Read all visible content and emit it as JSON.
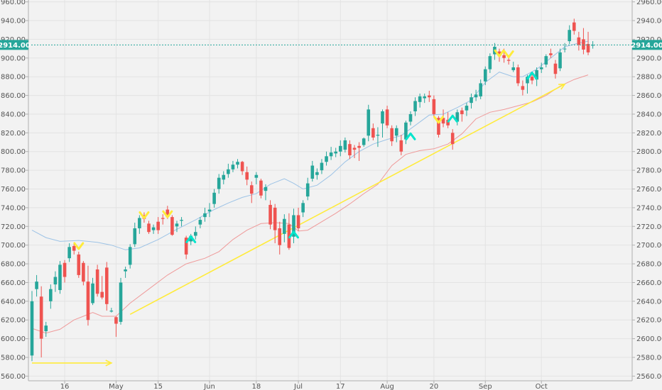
{
  "chart_data": {
    "type": "candlestick",
    "title": "",
    "xlabel": "",
    "ylabel": "",
    "ylim": [
      2555,
      2962
    ],
    "grid": true,
    "y_ticks": [
      2560,
      2580,
      2600,
      2620,
      2640,
      2660,
      2680,
      2700,
      2720,
      2740,
      2760,
      2780,
      2800,
      2820,
      2840,
      2860,
      2880,
      2900,
      2920,
      2940,
      2960
    ],
    "x_ticks": [
      {
        "day": 7,
        "label": "16"
      },
      {
        "day": 18,
        "label": "May"
      },
      {
        "day": 27,
        "label": "15"
      },
      {
        "day": 38,
        "label": "Jun"
      },
      {
        "day": 48,
        "label": "18"
      },
      {
        "day": 57,
        "label": "Jul"
      },
      {
        "day": 66,
        "label": "17"
      },
      {
        "day": 76,
        "label": "Aug"
      },
      {
        "day": 86,
        "label": "20"
      },
      {
        "day": 97,
        "label": "Sep"
      },
      {
        "day": 109,
        "label": "Oct"
      }
    ],
    "last_price": {
      "value": 2914.0,
      "label": "2914.00",
      "color": "#26a69a"
    },
    "colors": {
      "up": "#26a69a",
      "down": "#ef5350",
      "ma_fast": "#9dc3e6",
      "ma_slow": "#ef9a9a",
      "trend": "#ffeb3b",
      "marker_up": "#00e5cc",
      "marker_down": "#ffeb3b"
    },
    "candles": [
      {
        "o": 2582,
        "h": 2651,
        "l": 2576,
        "c": 2640
      },
      {
        "o": 2653,
        "h": 2668,
        "l": 2645,
        "c": 2661
      },
      {
        "o": 2645,
        "h": 2656,
        "l": 2580,
        "c": 2600
      },
      {
        "o": 2608,
        "h": 2618,
        "l": 2602,
        "c": 2614
      },
      {
        "o": 2640,
        "h": 2658,
        "l": 2632,
        "c": 2653
      },
      {
        "o": 2658,
        "h": 2672,
        "l": 2650,
        "c": 2666
      },
      {
        "o": 2652,
        "h": 2683,
        "l": 2648,
        "c": 2679
      },
      {
        "o": 2681,
        "h": 2684,
        "l": 2660,
        "c": 2666
      },
      {
        "o": 2686,
        "h": 2702,
        "l": 2682,
        "c": 2698
      },
      {
        "o": 2699,
        "h": 2702,
        "l": 2690,
        "c": 2694
      },
      {
        "o": 2690,
        "h": 2693,
        "l": 2665,
        "c": 2668
      },
      {
        "o": 2681,
        "h": 2683,
        "l": 2657,
        "c": 2661
      },
      {
        "o": 2661,
        "h": 2678,
        "l": 2614,
        "c": 2620
      },
      {
        "o": 2638,
        "h": 2665,
        "l": 2636,
        "c": 2659
      },
      {
        "o": 2674,
        "h": 2679,
        "l": 2645,
        "c": 2648
      },
      {
        "o": 2650,
        "h": 2667,
        "l": 2642,
        "c": 2644
      },
      {
        "o": 2676,
        "h": 2682,
        "l": 2630,
        "c": 2637
      },
      {
        "o": 2629,
        "h": 2633,
        "l": 2628,
        "c": 2630
      },
      {
        "o": 2623,
        "h": 2624,
        "l": 2602,
        "c": 2616
      },
      {
        "o": 2618,
        "h": 2665,
        "l": 2615,
        "c": 2660
      },
      {
        "o": 2672,
        "h": 2677,
        "l": 2665,
        "c": 2674
      },
      {
        "o": 2679,
        "h": 2701,
        "l": 2675,
        "c": 2698
      },
      {
        "o": 2701,
        "h": 2724,
        "l": 2698,
        "c": 2718
      },
      {
        "o": 2718,
        "h": 2732,
        "l": 2712,
        "c": 2729
      },
      {
        "o": 2732,
        "h": 2735,
        "l": 2724,
        "c": 2728
      },
      {
        "o": 2723,
        "h": 2726,
        "l": 2712,
        "c": 2714
      },
      {
        "o": 2716,
        "h": 2722,
        "l": 2712,
        "c": 2719
      },
      {
        "o": 2725,
        "h": 2730,
        "l": 2712,
        "c": 2716
      },
      {
        "o": 2729,
        "h": 2733,
        "l": 2722,
        "c": 2728
      },
      {
        "o": 2738,
        "h": 2742,
        "l": 2728,
        "c": 2730
      },
      {
        "o": 2730,
        "h": 2732,
        "l": 2710,
        "c": 2711
      },
      {
        "o": 2720,
        "h": 2726,
        "l": 2714,
        "c": 2723
      },
      {
        "o": 2726,
        "h": 2730,
        "l": 2720,
        "c": 2727
      },
      {
        "o": 2708,
        "h": 2710,
        "l": 2685,
        "c": 2690
      },
      {
        "o": 2704,
        "h": 2712,
        "l": 2700,
        "c": 2710
      },
      {
        "o": 2710,
        "h": 2720,
        "l": 2706,
        "c": 2714
      },
      {
        "o": 2722,
        "h": 2730,
        "l": 2718,
        "c": 2727
      },
      {
        "o": 2730,
        "h": 2740,
        "l": 2725,
        "c": 2734
      },
      {
        "o": 2736,
        "h": 2745,
        "l": 2730,
        "c": 2738
      },
      {
        "o": 2744,
        "h": 2760,
        "l": 2740,
        "c": 2756
      },
      {
        "o": 2760,
        "h": 2776,
        "l": 2755,
        "c": 2772
      },
      {
        "o": 2770,
        "h": 2779,
        "l": 2765,
        "c": 2775
      },
      {
        "o": 2776,
        "h": 2787,
        "l": 2772,
        "c": 2781
      },
      {
        "o": 2781,
        "h": 2790,
        "l": 2778,
        "c": 2786
      },
      {
        "o": 2786,
        "h": 2792,
        "l": 2782,
        "c": 2789
      },
      {
        "o": 2789,
        "h": 2790,
        "l": 2775,
        "c": 2779
      },
      {
        "o": 2778,
        "h": 2784,
        "l": 2764,
        "c": 2770
      },
      {
        "o": 2764,
        "h": 2768,
        "l": 2745,
        "c": 2755
      },
      {
        "o": 2772,
        "h": 2778,
        "l": 2765,
        "c": 2775
      },
      {
        "o": 2769,
        "h": 2771,
        "l": 2750,
        "c": 2753
      },
      {
        "o": 2758,
        "h": 2765,
        "l": 2748,
        "c": 2762
      },
      {
        "o": 2743,
        "h": 2748,
        "l": 2717,
        "c": 2722
      },
      {
        "o": 2740,
        "h": 2744,
        "l": 2702,
        "c": 2716
      },
      {
        "o": 2718,
        "h": 2725,
        "l": 2690,
        "c": 2700
      },
      {
        "o": 2712,
        "h": 2733,
        "l": 2703,
        "c": 2728
      },
      {
        "o": 2722,
        "h": 2734,
        "l": 2695,
        "c": 2697
      },
      {
        "o": 2709,
        "h": 2739,
        "l": 2702,
        "c": 2732
      },
      {
        "o": 2732,
        "h": 2740,
        "l": 2715,
        "c": 2718
      },
      {
        "o": 2735,
        "h": 2748,
        "l": 2730,
        "c": 2745
      },
      {
        "o": 2752,
        "h": 2772,
        "l": 2748,
        "c": 2766
      },
      {
        "o": 2771,
        "h": 2790,
        "l": 2768,
        "c": 2785
      },
      {
        "o": 2775,
        "h": 2782,
        "l": 2770,
        "c": 2778
      },
      {
        "o": 2780,
        "h": 2792,
        "l": 2776,
        "c": 2788
      },
      {
        "o": 2789,
        "h": 2800,
        "l": 2785,
        "c": 2795
      },
      {
        "o": 2795,
        "h": 2805,
        "l": 2791,
        "c": 2799
      },
      {
        "o": 2798,
        "h": 2804,
        "l": 2794,
        "c": 2800
      },
      {
        "o": 2800,
        "h": 2812,
        "l": 2795,
        "c": 2806
      },
      {
        "o": 2802,
        "h": 2815,
        "l": 2799,
        "c": 2812
      },
      {
        "o": 2808,
        "h": 2812,
        "l": 2792,
        "c": 2796
      },
      {
        "o": 2804,
        "h": 2807,
        "l": 2793,
        "c": 2802
      },
      {
        "o": 2806,
        "h": 2810,
        "l": 2790,
        "c": 2804
      },
      {
        "o": 2807,
        "h": 2815,
        "l": 2805,
        "c": 2814
      },
      {
        "o": 2817,
        "h": 2850,
        "l": 2811,
        "c": 2845
      },
      {
        "o": 2825,
        "h": 2830,
        "l": 2812,
        "c": 2815
      },
      {
        "o": 2817,
        "h": 2826,
        "l": 2805,
        "c": 2818
      },
      {
        "o": 2830,
        "h": 2845,
        "l": 2815,
        "c": 2843
      },
      {
        "o": 2845,
        "h": 2849,
        "l": 2825,
        "c": 2828
      },
      {
        "o": 2825,
        "h": 2828,
        "l": 2806,
        "c": 2811
      },
      {
        "o": 2817,
        "h": 2828,
        "l": 2810,
        "c": 2825
      },
      {
        "o": 2812,
        "h": 2818,
        "l": 2796,
        "c": 2800
      },
      {
        "o": 2813,
        "h": 2833,
        "l": 2808,
        "c": 2831
      },
      {
        "o": 2832,
        "h": 2843,
        "l": 2828,
        "c": 2840
      },
      {
        "o": 2843,
        "h": 2858,
        "l": 2838,
        "c": 2854
      },
      {
        "o": 2853,
        "h": 2862,
        "l": 2847,
        "c": 2859
      },
      {
        "o": 2857,
        "h": 2862,
        "l": 2852,
        "c": 2859
      },
      {
        "o": 2860,
        "h": 2865,
        "l": 2853,
        "c": 2858
      },
      {
        "o": 2856,
        "h": 2860,
        "l": 2837,
        "c": 2840
      },
      {
        "o": 2836,
        "h": 2838,
        "l": 2815,
        "c": 2818
      },
      {
        "o": 2836,
        "h": 2845,
        "l": 2826,
        "c": 2830
      },
      {
        "o": 2834,
        "h": 2842,
        "l": 2825,
        "c": 2828
      },
      {
        "o": 2820,
        "h": 2824,
        "l": 2802,
        "c": 2808
      },
      {
        "o": 2832,
        "h": 2845,
        "l": 2828,
        "c": 2842
      },
      {
        "o": 2844,
        "h": 2847,
        "l": 2832,
        "c": 2840
      },
      {
        "o": 2844,
        "h": 2852,
        "l": 2838,
        "c": 2849
      },
      {
        "o": 2852,
        "h": 2862,
        "l": 2846,
        "c": 2858
      },
      {
        "o": 2858,
        "h": 2866,
        "l": 2854,
        "c": 2861
      },
      {
        "o": 2859,
        "h": 2877,
        "l": 2856,
        "c": 2873
      },
      {
        "o": 2875,
        "h": 2891,
        "l": 2871,
        "c": 2888
      },
      {
        "o": 2888,
        "h": 2905,
        "l": 2884,
        "c": 2902
      },
      {
        "o": 2904,
        "h": 2916,
        "l": 2898,
        "c": 2912
      },
      {
        "o": 2907,
        "h": 2910,
        "l": 2896,
        "c": 2902
      },
      {
        "o": 2903,
        "h": 2910,
        "l": 2895,
        "c": 2900
      },
      {
        "o": 2898,
        "h": 2902,
        "l": 2893,
        "c": 2897
      },
      {
        "o": 2887,
        "h": 2896,
        "l": 2885,
        "c": 2890
      },
      {
        "o": 2890,
        "h": 2893,
        "l": 2870,
        "c": 2873
      },
      {
        "o": 2870,
        "h": 2876,
        "l": 2860,
        "c": 2866
      },
      {
        "o": 2873,
        "h": 2882,
        "l": 2862,
        "c": 2880
      },
      {
        "o": 2880,
        "h": 2884,
        "l": 2872,
        "c": 2876
      },
      {
        "o": 2877,
        "h": 2890,
        "l": 2870,
        "c": 2887
      },
      {
        "o": 2888,
        "h": 2895,
        "l": 2884,
        "c": 2890
      },
      {
        "o": 2893,
        "h": 2904,
        "l": 2890,
        "c": 2902
      },
      {
        "o": 2905,
        "h": 2910,
        "l": 2900,
        "c": 2903
      },
      {
        "o": 2894,
        "h": 2898,
        "l": 2878,
        "c": 2883
      },
      {
        "o": 2889,
        "h": 2910,
        "l": 2886,
        "c": 2906
      },
      {
        "o": 2910,
        "h": 2916,
        "l": 2906,
        "c": 2910
      },
      {
        "o": 2918,
        "h": 2935,
        "l": 2915,
        "c": 2930
      },
      {
        "o": 2938,
        "h": 2942,
        "l": 2925,
        "c": 2929
      },
      {
        "o": 2922,
        "h": 2928,
        "l": 2908,
        "c": 2914
      },
      {
        "o": 2920,
        "h": 2932,
        "l": 2904,
        "c": 2909
      },
      {
        "o": 2915,
        "h": 2928,
        "l": 2903,
        "c": 2906
      },
      {
        "o": 2914,
        "h": 2918,
        "l": 2910,
        "c": 2914
      }
    ],
    "series": [
      {
        "type": "line",
        "points": [
          [
            0,
            2716
          ],
          [
            3,
            2708
          ],
          [
            6,
            2704
          ],
          [
            10,
            2705
          ],
          [
            14,
            2703
          ],
          [
            17,
            2700
          ],
          [
            20,
            2695
          ],
          [
            23,
            2697
          ],
          [
            27,
            2706
          ],
          [
            31,
            2717
          ],
          [
            35,
            2727
          ],
          [
            39,
            2738
          ],
          [
            42,
            2745
          ],
          [
            45,
            2751
          ],
          [
            48,
            2755
          ],
          [
            51,
            2765
          ],
          [
            54,
            2771
          ],
          [
            56,
            2766
          ],
          [
            58,
            2760
          ],
          [
            61,
            2764
          ],
          [
            64,
            2775
          ],
          [
            67,
            2789
          ],
          [
            70,
            2800
          ],
          [
            73,
            2808
          ],
          [
            76,
            2813
          ],
          [
            79,
            2817
          ],
          [
            82,
            2828
          ],
          [
            85,
            2839
          ],
          [
            88,
            2840
          ],
          [
            91,
            2847
          ],
          [
            94,
            2855
          ],
          [
            97,
            2874
          ],
          [
            100,
            2885
          ],
          [
            103,
            2880
          ],
          [
            105,
            2880
          ],
          [
            108,
            2888
          ],
          [
            111,
            2900
          ],
          [
            114,
            2912
          ],
          [
            117,
            2916
          ],
          [
            119,
            2918
          ]
        ]
      },
      {
        "type": "line",
        "points": [
          [
            0,
            2611
          ],
          [
            3,
            2606
          ],
          [
            6,
            2610
          ],
          [
            9,
            2620
          ],
          [
            11,
            2624
          ],
          [
            13,
            2628
          ],
          [
            15,
            2624
          ],
          [
            18,
            2624
          ],
          [
            21,
            2638
          ],
          [
            25,
            2653
          ],
          [
            29,
            2668
          ],
          [
            33,
            2680
          ],
          [
            37,
            2686
          ],
          [
            40,
            2693
          ],
          [
            43,
            2706
          ],
          [
            46,
            2716
          ],
          [
            49,
            2723
          ],
          [
            52,
            2724
          ],
          [
            55,
            2723
          ],
          [
            57,
            2715
          ],
          [
            59,
            2716
          ],
          [
            62,
            2725
          ],
          [
            65,
            2734
          ],
          [
            68,
            2744
          ],
          [
            71,
            2755
          ],
          [
            74,
            2765
          ],
          [
            77,
            2785
          ],
          [
            80,
            2797
          ],
          [
            83,
            2801
          ],
          [
            86,
            2803
          ],
          [
            89,
            2808
          ],
          [
            92,
            2819
          ],
          [
            95,
            2835
          ],
          [
            98,
            2842
          ],
          [
            101,
            2845
          ],
          [
            104,
            2849
          ],
          [
            107,
            2853
          ],
          [
            110,
            2860
          ],
          [
            113,
            2870
          ],
          [
            116,
            2877
          ],
          [
            119,
            2882
          ]
        ]
      },
      {
        "type": "line",
        "points": [
          [
            0,
            2574
          ],
          [
            17,
            2574
          ]
        ]
      },
      {
        "type": "line",
        "points": [
          [
            21,
            2626
          ],
          [
            114,
            2872
          ]
        ]
      }
    ],
    "markers": [
      {
        "day": 10,
        "value": 2699,
        "dir": "down"
      },
      {
        "day": 24,
        "value": 2732,
        "dir": "down"
      },
      {
        "day": 29,
        "value": 2733,
        "dir": "down"
      },
      {
        "day": 34,
        "value": 2707,
        "dir": "up"
      },
      {
        "day": 56,
        "value": 2712,
        "dir": "up"
      },
      {
        "day": 81,
        "value": 2817,
        "dir": "up"
      },
      {
        "day": 87,
        "value": 2834,
        "dir": "down"
      },
      {
        "day": 90,
        "value": 2836,
        "dir": "up"
      },
      {
        "day": 100,
        "value": 2905,
        "dir": "down"
      },
      {
        "day": 102,
        "value": 2904,
        "dir": "down"
      },
      {
        "day": 107,
        "value": 2882,
        "dir": "up"
      }
    ]
  }
}
